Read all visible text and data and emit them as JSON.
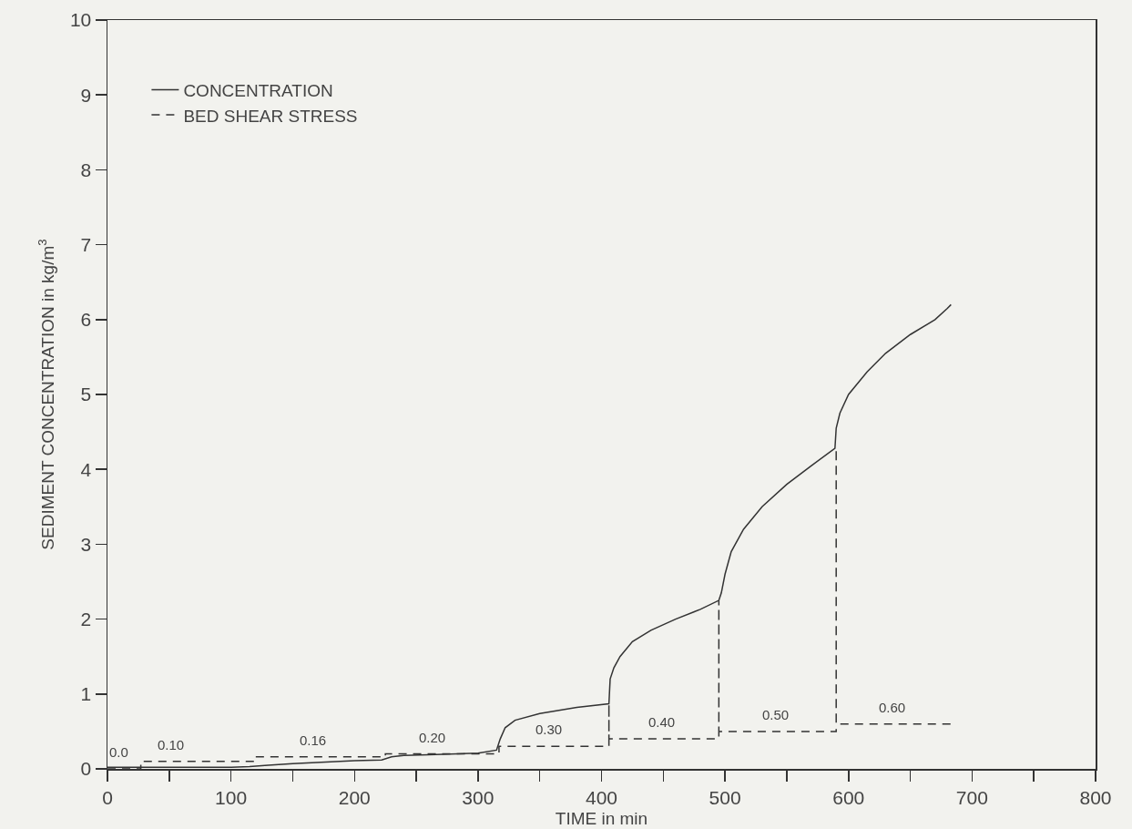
{
  "chart_data": {
    "type": "line",
    "xlabel": "TIME in min",
    "ylabel": "SEDIMENT CONCENTRATION in kg/m$^{3}$",
    "xlim": [
      0,
      800
    ],
    "ylim": [
      0,
      10
    ],
    "xticks": [
      0,
      {
        "value": 50,
        "label": null
      },
      100,
      {
        "value": 150,
        "label": null
      },
      200,
      {
        "value": 250,
        "label": null
      },
      300,
      {
        "value": 350,
        "label": null
      },
      400,
      {
        "value": 450,
        "label": null
      },
      500,
      {
        "value": 550,
        "label": null
      },
      600,
      {
        "value": 650,
        "label": null
      },
      700,
      {
        "value": 750,
        "label": null
      },
      800
    ],
    "yticks": [
      0,
      1,
      2,
      3,
      4,
      5,
      6,
      7,
      8,
      9,
      10
    ],
    "grid": false,
    "legend": "top left",
    "marker": "none",
    "series": [
      {
        "name": "CONCENTRATION",
        "color": "#333333",
        "line_style": "solid",
        "x": [
          0,
          50,
          100,
          115,
          130,
          150,
          200,
          222,
          230,
          240,
          260,
          300,
          315,
          318,
          322,
          330,
          350,
          380,
          406,
          407,
          410,
          415,
          425,
          440,
          460,
          480,
          495,
          497,
          500,
          505,
          515,
          530,
          550,
          570,
          589,
          590,
          593,
          600,
          615,
          630,
          650,
          670,
          680,
          683
        ],
        "values": [
          0.02,
          0.02,
          0.02,
          0.03,
          0.05,
          0.07,
          0.11,
          0.12,
          0.16,
          0.18,
          0.19,
          0.21,
          0.25,
          0.4,
          0.55,
          0.65,
          0.74,
          0.82,
          0.87,
          1.2,
          1.35,
          1.5,
          1.7,
          1.85,
          2.0,
          2.13,
          2.25,
          2.35,
          2.6,
          2.9,
          3.2,
          3.5,
          3.8,
          4.05,
          4.28,
          4.55,
          4.75,
          5.0,
          5.3,
          5.55,
          5.8,
          6.0,
          6.15,
          6.2
        ]
      },
      {
        "name": "BED SHEAR STRESS",
        "color": "#333333",
        "line_style": "dashed",
        "x": [
          0,
          27,
          27,
          118,
          118,
          225,
          225,
          317,
          317,
          406,
          406,
          406,
          495,
          495,
          495,
          590,
          590,
          590,
          684
        ],
        "values": [
          0,
          0,
          0.1,
          0.1,
          0.16,
          0.16,
          0.2,
          0.2,
          0.3,
          0.3,
          0.87,
          0.4,
          0.4,
          2.25,
          0.5,
          0.5,
          4.28,
          0.6,
          0.6
        ]
      }
    ],
    "annotations": [
      {
        "text": "0.0",
        "x": 9,
        "y": 0
      },
      {
        "text": "0.10",
        "x": 51,
        "y": 0.1
      },
      {
        "text": "0.16",
        "x": 166,
        "y": 0.16
      },
      {
        "text": "0.20",
        "x": 263,
        "y": 0.2
      },
      {
        "text": "0.30",
        "x": 357,
        "y": 0.3
      },
      {
        "text": "0.40",
        "x": 449,
        "y": 0.4
      },
      {
        "text": "0.50",
        "x": 541,
        "y": 0.5
      },
      {
        "text": "0.60",
        "x": 635,
        "y": 0.6
      }
    ]
  }
}
